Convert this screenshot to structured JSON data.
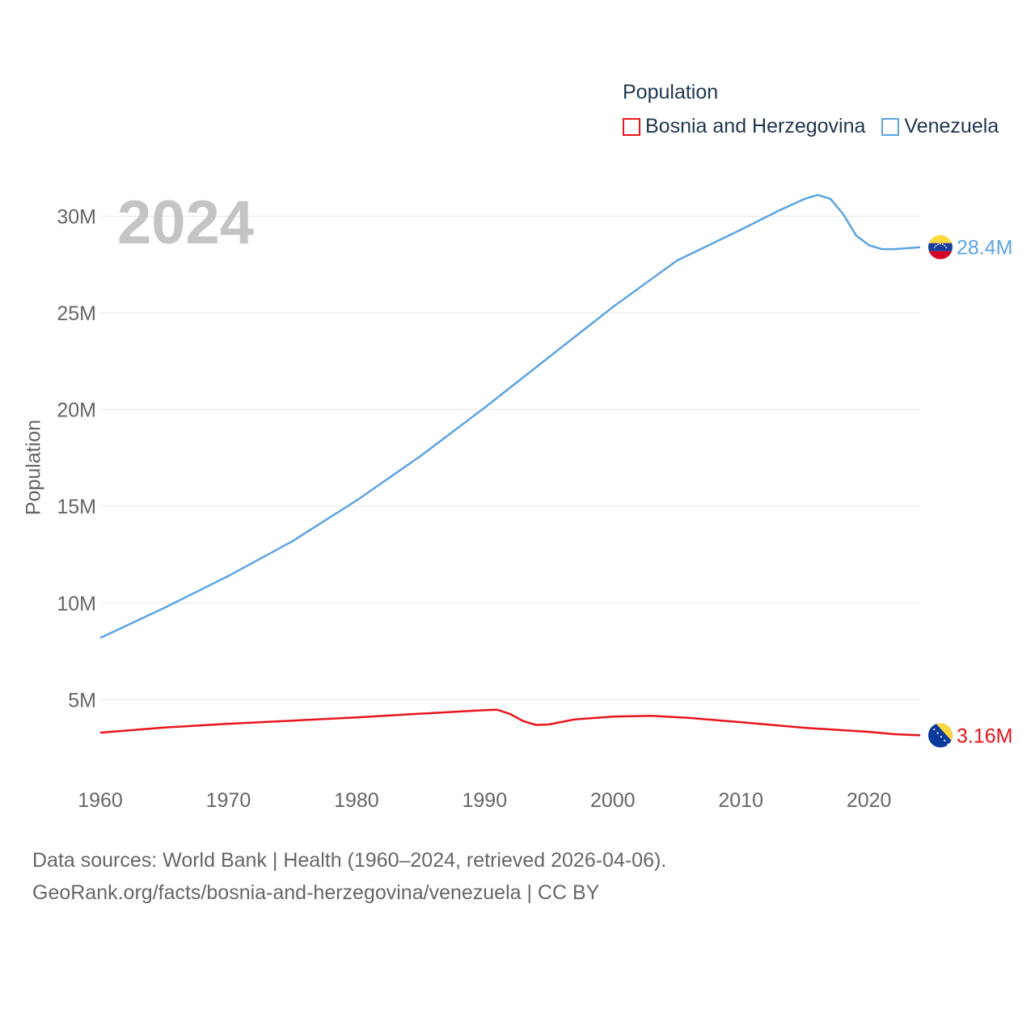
{
  "chart_data": {
    "type": "line",
    "ylabel": "Population",
    "xlabel": "",
    "year_label": "2024",
    "legend_title": "Population",
    "xlim": [
      1960,
      2024
    ],
    "ylim": [
      0,
      32000000
    ],
    "x_ticks": [
      1960,
      1970,
      1980,
      1990,
      2000,
      2010,
      2020
    ],
    "y_ticks": [
      {
        "value": 5000000,
        "label": "5M"
      },
      {
        "value": 10000000,
        "label": "10M"
      },
      {
        "value": 15000000,
        "label": "15M"
      },
      {
        "value": 20000000,
        "label": "20M"
      },
      {
        "value": 25000000,
        "label": "25M"
      },
      {
        "value": 30000000,
        "label": "30M"
      }
    ],
    "grid": true,
    "series": [
      {
        "name": "Bosnia and Herzegovina",
        "color": "#e8141c",
        "end_label": "3.16M",
        "flag": "bosnia-flag",
        "points": [
          [
            1960,
            3300000
          ],
          [
            1965,
            3560000
          ],
          [
            1970,
            3760000
          ],
          [
            1975,
            3920000
          ],
          [
            1980,
            4090000
          ],
          [
            1985,
            4280000
          ],
          [
            1990,
            4460000
          ],
          [
            1991,
            4480000
          ],
          [
            1992,
            4260000
          ],
          [
            1993,
            3900000
          ],
          [
            1994,
            3700000
          ],
          [
            1995,
            3720000
          ],
          [
            1997,
            3980000
          ],
          [
            2000,
            4130000
          ],
          [
            2003,
            4170000
          ],
          [
            2006,
            4060000
          ],
          [
            2010,
            3840000
          ],
          [
            2015,
            3550000
          ],
          [
            2020,
            3340000
          ],
          [
            2022,
            3220000
          ],
          [
            2024,
            3160000
          ]
        ]
      },
      {
        "name": "Venezuela",
        "color": "#5ba4e3",
        "end_label": "28.4M",
        "flag": "venezuela-flag",
        "points": [
          [
            1960,
            8200000
          ],
          [
            1965,
            9750000
          ],
          [
            1970,
            11400000
          ],
          [
            1975,
            13200000
          ],
          [
            1980,
            15300000
          ],
          [
            1985,
            17600000
          ],
          [
            1990,
            20100000
          ],
          [
            1995,
            22700000
          ],
          [
            2000,
            25300000
          ],
          [
            2005,
            27700000
          ],
          [
            2010,
            29300000
          ],
          [
            2013,
            30300000
          ],
          [
            2015,
            30900000
          ],
          [
            2016,
            31100000
          ],
          [
            2017,
            30900000
          ],
          [
            2018,
            30100000
          ],
          [
            2019,
            29000000
          ],
          [
            2020,
            28500000
          ],
          [
            2021,
            28300000
          ],
          [
            2022,
            28300000
          ],
          [
            2024,
            28400000
          ]
        ]
      }
    ]
  },
  "footer": {
    "line1": "Data sources: World Bank | Health (1960–2024, retrieved 2026-04-06).",
    "line2": "GeoRank.org/facts/bosnia-and-herzegovina/venezuela | CC BY"
  }
}
